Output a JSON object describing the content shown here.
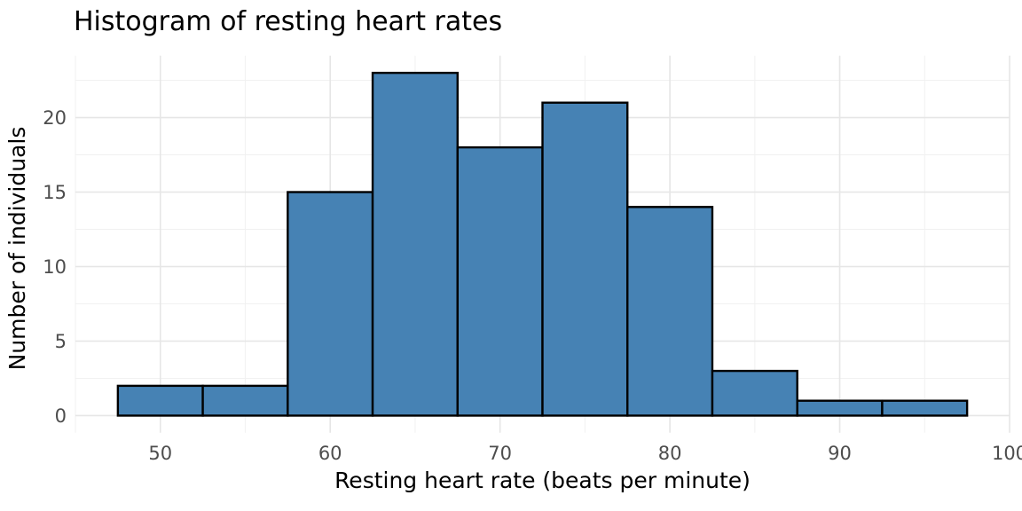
{
  "chart_data": {
    "type": "bar",
    "chart_kind": "histogram",
    "title": "Histogram of resting heart rates",
    "xlabel": "Resting heart rate (beats per minute)",
    "ylabel": "Number of individuals",
    "bins": {
      "start": 47.5,
      "bin_width": 5,
      "counts": [
        2,
        2,
        15,
        23,
        18,
        21,
        14,
        3,
        1,
        1
      ]
    },
    "bin_edges": [
      47.5,
      52.5,
      57.5,
      62.5,
      67.5,
      72.5,
      77.5,
      82.5,
      87.5,
      92.5,
      97.5
    ],
    "x_ticks": [
      50,
      60,
      70,
      80,
      90,
      100
    ],
    "y_ticks": [
      0,
      5,
      10,
      15,
      20
    ],
    "x_minor_gridlines": [
      45,
      55,
      65,
      75,
      85,
      95
    ],
    "y_minor_gridlines": [
      2.5,
      7.5,
      12.5,
      17.5,
      22.5
    ],
    "xlim": [
      45,
      100
    ],
    "ylim": [
      -1.15,
      24.15
    ],
    "grid": true,
    "legend": "none",
    "colors": {
      "bar_fill": "#4682B4",
      "bar_stroke": "#000000",
      "grid_major": "#E6E6E6",
      "grid_minor": "#F1F1F1",
      "tick_label": "#4D4D4D",
      "title_text": "#000000",
      "background": "#FFFFFF"
    }
  }
}
